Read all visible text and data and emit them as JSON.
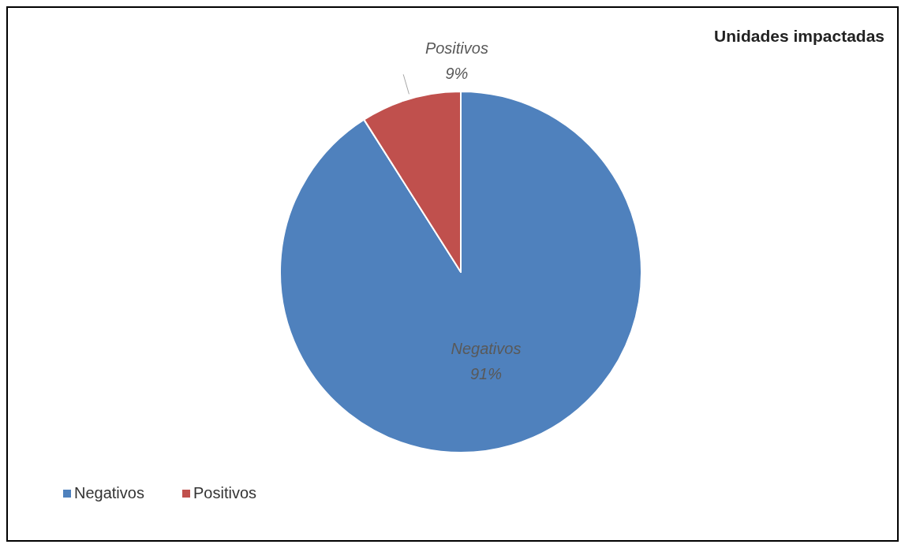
{
  "chart_data": {
    "type": "pie",
    "title": "Unidades impactadas",
    "categories": [
      "Negativos",
      "Positivos"
    ],
    "values": [
      91,
      9
    ],
    "colors": [
      "#4f81bd",
      "#c0504d"
    ],
    "value_labels": [
      "91%",
      "9%"
    ],
    "legend": "bottom left"
  }
}
